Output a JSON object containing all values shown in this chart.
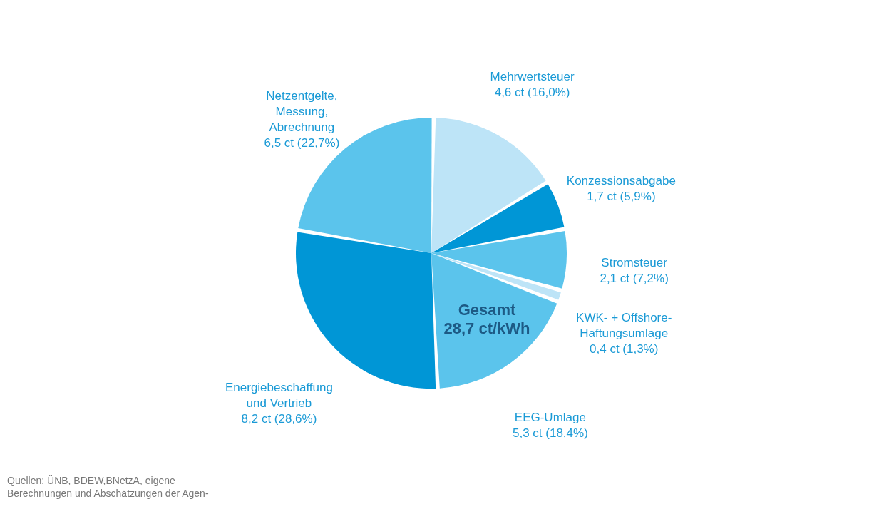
{
  "chart_data": {
    "type": "pie",
    "categories": [
      "Netzentgelte,\nMessung,\nAbrechnung",
      "Mehrwertsteuer",
      "Konzessionsabgabe",
      "Stromsteuer",
      "KWK- + Offshore-\nHaftungsumlage",
      "EEG-Umlage",
      "Energiebeschaffung\nund Vertrieb"
    ],
    "values": [
      6.5,
      4.6,
      1.7,
      2.1,
      0.4,
      5.3,
      8.2
    ],
    "value_labels": [
      "6,5 ct (22,7%)",
      "4,6 ct (16,0%)",
      "1,7 ct (5,9%)",
      "2,1 ct (7,2%)",
      "0,4 ct (1,3%)",
      "5,3 ct (18,4%)",
      "8,2 ct (28,6%)"
    ],
    "colors": [
      "#5bc4ec",
      "#bde4f7",
      "#0096d6",
      "#5bc4ec",
      "#bde4f7",
      "#5bc4ec",
      "#0096d6"
    ],
    "annotations": [
      "Gesamt\n28,7 ct/kWh",
      "Quellen: ÜNB, BDEW,BNetzA, eigene\nBerechnungen und Abschätzungen der Agen-"
    ],
    "legend": false
  }
}
